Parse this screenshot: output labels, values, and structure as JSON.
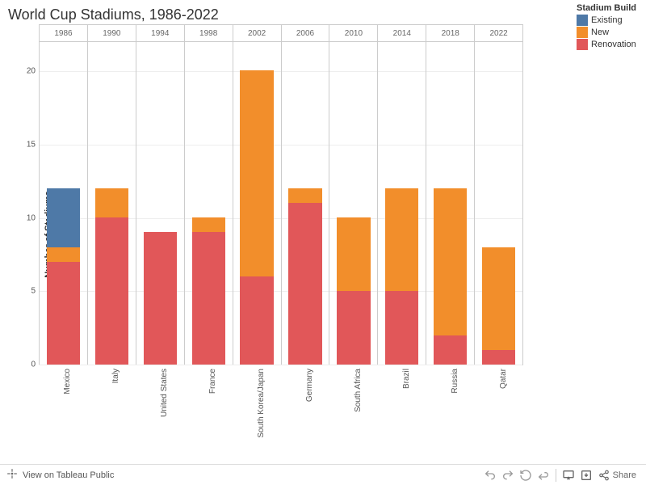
{
  "title": "World Cup Stadiums, 1986-2022",
  "legend": {
    "title": "Stadium Build",
    "items": [
      {
        "label": "Existing",
        "color": "#4e79a7"
      },
      {
        "label": "New",
        "color": "#f28e2b"
      },
      {
        "label": "Renovation",
        "color": "#e15759"
      }
    ]
  },
  "axes": {
    "y_label": "Number of Stadiums",
    "y_max": 22,
    "y_ticks": [
      0,
      5,
      10,
      15,
      20
    ],
    "tick_fontsize": 10,
    "label_fontsize": 11,
    "grid_color": "#eeeeee",
    "border_color": "#cccccc"
  },
  "chart": {
    "type": "stacked-bar",
    "background_color": "#ffffff",
    "bar_width_ratio": 0.7,
    "categories": [
      {
        "year": "1986",
        "country": "Mexico",
        "stacks": {
          "Renovation": 7,
          "New": 1,
          "Existing": 4
        }
      },
      {
        "year": "1990",
        "country": "Italy",
        "stacks": {
          "Renovation": 10,
          "New": 2,
          "Existing": 0
        }
      },
      {
        "year": "1994",
        "country": "United States",
        "stacks": {
          "Renovation": 9,
          "New": 0,
          "Existing": 0
        }
      },
      {
        "year": "1998",
        "country": "France",
        "stacks": {
          "Renovation": 9,
          "New": 1,
          "Existing": 0
        }
      },
      {
        "year": "2002",
        "country": "South Korea/Japan",
        "stacks": {
          "Renovation": 6,
          "New": 14,
          "Existing": 0
        }
      },
      {
        "year": "2006",
        "country": "Germany",
        "stacks": {
          "Renovation": 11,
          "New": 1,
          "Existing": 0
        }
      },
      {
        "year": "2010",
        "country": "South Africa",
        "stacks": {
          "Renovation": 5,
          "New": 5,
          "Existing": 0
        }
      },
      {
        "year": "2014",
        "country": "Brazil",
        "stacks": {
          "Renovation": 5,
          "New": 7,
          "Existing": 0
        }
      },
      {
        "year": "2018",
        "country": "Russia",
        "stacks": {
          "Renovation": 2,
          "New": 10,
          "Existing": 0
        }
      },
      {
        "year": "2022",
        "country": "Qatar",
        "stacks": {
          "Renovation": 1,
          "New": 7,
          "Existing": 0
        }
      }
    ]
  },
  "toolbar": {
    "view_label": "View on Tableau Public",
    "share_label": "Share"
  }
}
